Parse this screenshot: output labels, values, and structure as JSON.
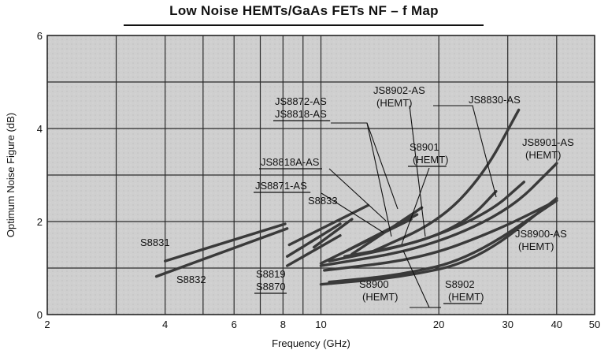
{
  "chart_data": {
    "type": "line",
    "title": "Low Noise HEMTs/GaAs FETs    NF – f    Map",
    "xlabel": "Frequency (GHz)",
    "ylabel": "Optimum Noise Figure (dB)",
    "x_scale": "log",
    "xlim": [
      2,
      50
    ],
    "ylim": [
      0,
      6
    ],
    "grid": true,
    "x_ticks": [
      "2",
      "4",
      "6",
      "8",
      "10",
      "20",
      "30",
      "40",
      "50"
    ],
    "y_ticks": [
      "0",
      "2",
      "4",
      "6"
    ],
    "series": [
      {
        "name": "S8831",
        "x": [
          4,
          8.1
        ],
        "y": [
          1.15,
          1.95
        ]
      },
      {
        "name": "S8832",
        "x": [
          3.8,
          8.2
        ],
        "y": [
          0.82,
          1.85
        ]
      },
      {
        "name": "S8819",
        "x": [
          8.2,
          11.2
        ],
        "y": [
          1.05,
          1.7
        ]
      },
      {
        "name": "S8870",
        "x": [
          8.2,
          11.2
        ],
        "y": [
          1.25,
          1.95
        ]
      },
      {
        "name": "S8833",
        "x": [
          8.3,
          13.2
        ],
        "y": [
          1.5,
          2.35
        ]
      },
      {
        "name": "JS8871-AS",
        "x": [
          9.6,
          12
        ],
        "y": [
          1.45,
          2.05
        ]
      },
      {
        "name": "JS8818A-AS",
        "x": [
          10,
          17
        ],
        "y": [
          1.1,
          2.05
        ]
      },
      {
        "name": "JS8872-AS",
        "x": [
          11.8,
          17.6
        ],
        "y": [
          1.4,
          2.15
        ]
      },
      {
        "name": "JS8818-AS",
        "x": [
          12,
          18.1
        ],
        "y": [
          1.3,
          2.3
        ]
      },
      {
        "name": "JS8830-AS",
        "x": [
          13.5,
          20,
          26,
          32
        ],
        "y": [
          1.35,
          2.0,
          3.0,
          4.4
        ]
      },
      {
        "name": "JS8902-AS (HEMT)",
        "x": [
          11.5,
          18,
          24,
          28
        ],
        "y": [
          1.25,
          1.55,
          2.05,
          2.65
        ]
      },
      {
        "name": "S8901 (HEMT)",
        "x": [
          10.5,
          18,
          27,
          33
        ],
        "y": [
          1.15,
          1.55,
          2.2,
          2.85
        ]
      },
      {
        "name": "JS8901-AS (HEMT)",
        "x": [
          10,
          18,
          30,
          40
        ],
        "y": [
          1.05,
          1.4,
          2.2,
          3.25
        ]
      },
      {
        "name": "S8902 (HEMT)",
        "x": [
          10.2,
          18,
          28,
          40
        ],
        "y": [
          0.95,
          1.2,
          1.8,
          2.45
        ]
      },
      {
        "name": "S8900 (HEMT)",
        "x": [
          10.5,
          16,
          24,
          40
        ],
        "y": [
          0.7,
          0.85,
          1.2,
          2.45
        ]
      },
      {
        "name": "JS8900-AS (HEMT)",
        "x": [
          10,
          16,
          25,
          40
        ],
        "y": [
          0.65,
          0.8,
          1.15,
          2.5
        ]
      }
    ],
    "labels": [
      {
        "line1": "S8831",
        "line2": ""
      },
      {
        "line1": "S8832",
        "line2": ""
      },
      {
        "line1": "S8819",
        "line2": "S8870"
      },
      {
        "line1": "S8833",
        "line2": ""
      },
      {
        "line1": "JS8871-AS",
        "line2": ""
      },
      {
        "line1": "JS8818A-AS",
        "line2": ""
      },
      {
        "line1": "JS8872-AS",
        "line2": "JS8818-AS"
      },
      {
        "line1": "JS8902-AS",
        "line2": "(HEMT)"
      },
      {
        "line1": "JS8830-AS",
        "line2": ""
      },
      {
        "line1": "S8901",
        "line2": "(HEMT)"
      },
      {
        "line1": "JS8901-AS",
        "line2": "(HEMT)"
      },
      {
        "line1": "JS8900-AS",
        "line2": "(HEMT)"
      },
      {
        "line1": "S8900",
        "line2": "(HEMT)"
      },
      {
        "line1": "S8902",
        "line2": "(HEMT)"
      }
    ]
  }
}
